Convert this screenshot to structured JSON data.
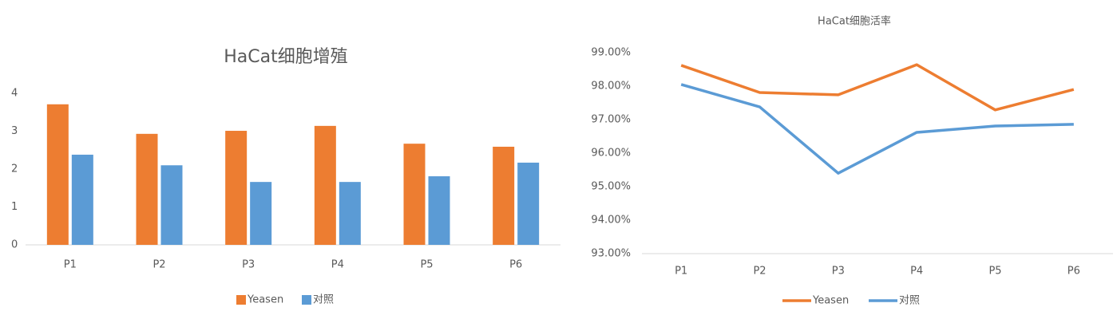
{
  "chart_data": [
    {
      "type": "bar",
      "title": "HaCat细胞增殖",
      "categories": [
        "P1",
        "P2",
        "P3",
        "P4",
        "P5",
        "P6"
      ],
      "series": [
        {
          "name": "Yeasen",
          "color": "#ed7d31",
          "values": [
            3.71,
            2.93,
            3.01,
            3.14,
            2.67,
            2.59
          ]
        },
        {
          "name": "对照",
          "color": "#5b9bd5",
          "values": [
            2.38,
            2.1,
            1.66,
            1.66,
            1.81,
            2.17
          ]
        }
      ],
      "ylim": [
        0,
        4
      ],
      "yticks": [
        0,
        1,
        2,
        3,
        4
      ],
      "grid": false,
      "legend": "bottom"
    },
    {
      "type": "line",
      "title": "HaCat细胞活率",
      "categories": [
        "P1",
        "P2",
        "P3",
        "P4",
        "P5",
        "P6"
      ],
      "series": [
        {
          "name": "Yeasen",
          "color": "#ed7d31",
          "values": [
            98.62,
            97.81,
            97.74,
            98.64,
            97.29,
            97.9
          ]
        },
        {
          "name": "对照",
          "color": "#5b9bd5",
          "values": [
            98.05,
            97.38,
            95.4,
            96.62,
            96.81,
            96.86
          ]
        }
      ],
      "ylim": [
        93,
        99
      ],
      "yticks": [
        {
          "value": 93,
          "label": "93.00%"
        },
        {
          "value": 94,
          "label": "94.00%"
        },
        {
          "value": 95,
          "label": "95.00%"
        },
        {
          "value": 96,
          "label": "96.00%"
        },
        {
          "value": 97,
          "label": "97.00%"
        },
        {
          "value": 98,
          "label": "98.00%"
        },
        {
          "value": 99,
          "label": "99.00%"
        }
      ],
      "grid": false,
      "legend": "bottom"
    }
  ]
}
